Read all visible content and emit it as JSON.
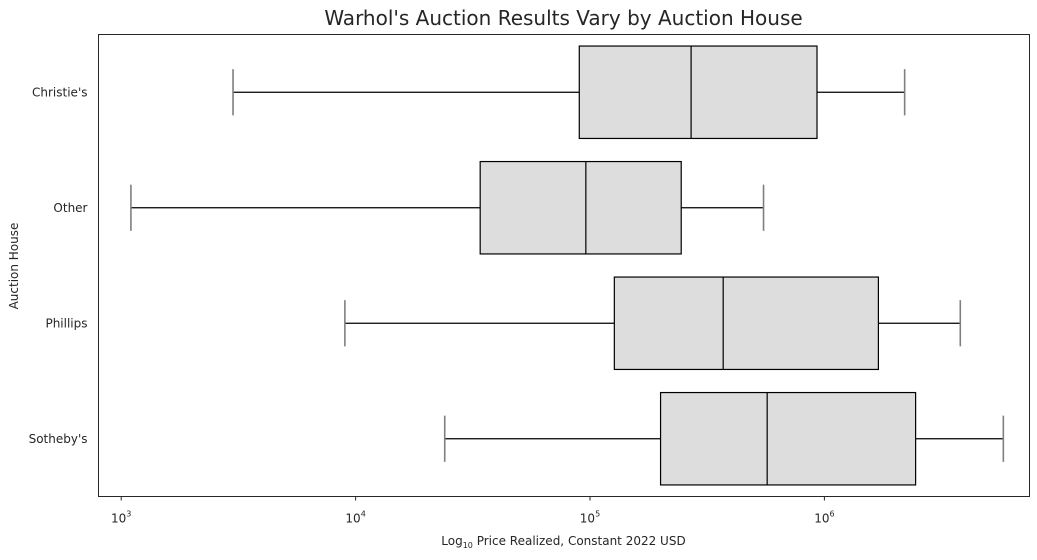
{
  "chart_data": {
    "type": "boxplot",
    "orientation": "horizontal",
    "title": "Warhol's Auction Results Vary by Auction House",
    "xlabel": "Log10 Price Realized, Constant 2022 USD",
    "xlabel_parts": {
      "before": "Log",
      "subscript": "10",
      "after": " Price Realized, Constant 2022 USD"
    },
    "ylabel": "Auction House",
    "x_scale": "log",
    "xlim": [
      800,
      7500000
    ],
    "x_ticks": [
      {
        "value": 1000,
        "base": "10",
        "exp": "3"
      },
      {
        "value": 10000,
        "base": "10",
        "exp": "4"
      },
      {
        "value": 100000,
        "base": "10",
        "exp": "5"
      },
      {
        "value": 1000000,
        "base": "10",
        "exp": "6"
      }
    ],
    "categories": [
      "Christie's",
      "Other",
      "Phillips",
      "Sotheby's"
    ],
    "boxes": [
      {
        "category": "Christie's",
        "whisker_low": 3000,
        "q1": 90000,
        "median": 270000,
        "q3": 930000,
        "whisker_high": 2200000
      },
      {
        "category": "Other",
        "whisker_low": 1100,
        "q1": 34000,
        "median": 96000,
        "q3": 245000,
        "whisker_high": 550000
      },
      {
        "category": "Phillips",
        "whisker_low": 9000,
        "q1": 127000,
        "median": 370000,
        "q3": 1700000,
        "whisker_high": 3800000
      },
      {
        "category": "Sotheby's",
        "whisker_low": 24000,
        "q1": 200000,
        "median": 570000,
        "q3": 2450000,
        "whisker_high": 5800000
      }
    ],
    "colors": {
      "box_fill": "#dddddd",
      "box_edge": "#000000",
      "cap": "#7f7f7f"
    },
    "grid": false,
    "legend": "none"
  }
}
